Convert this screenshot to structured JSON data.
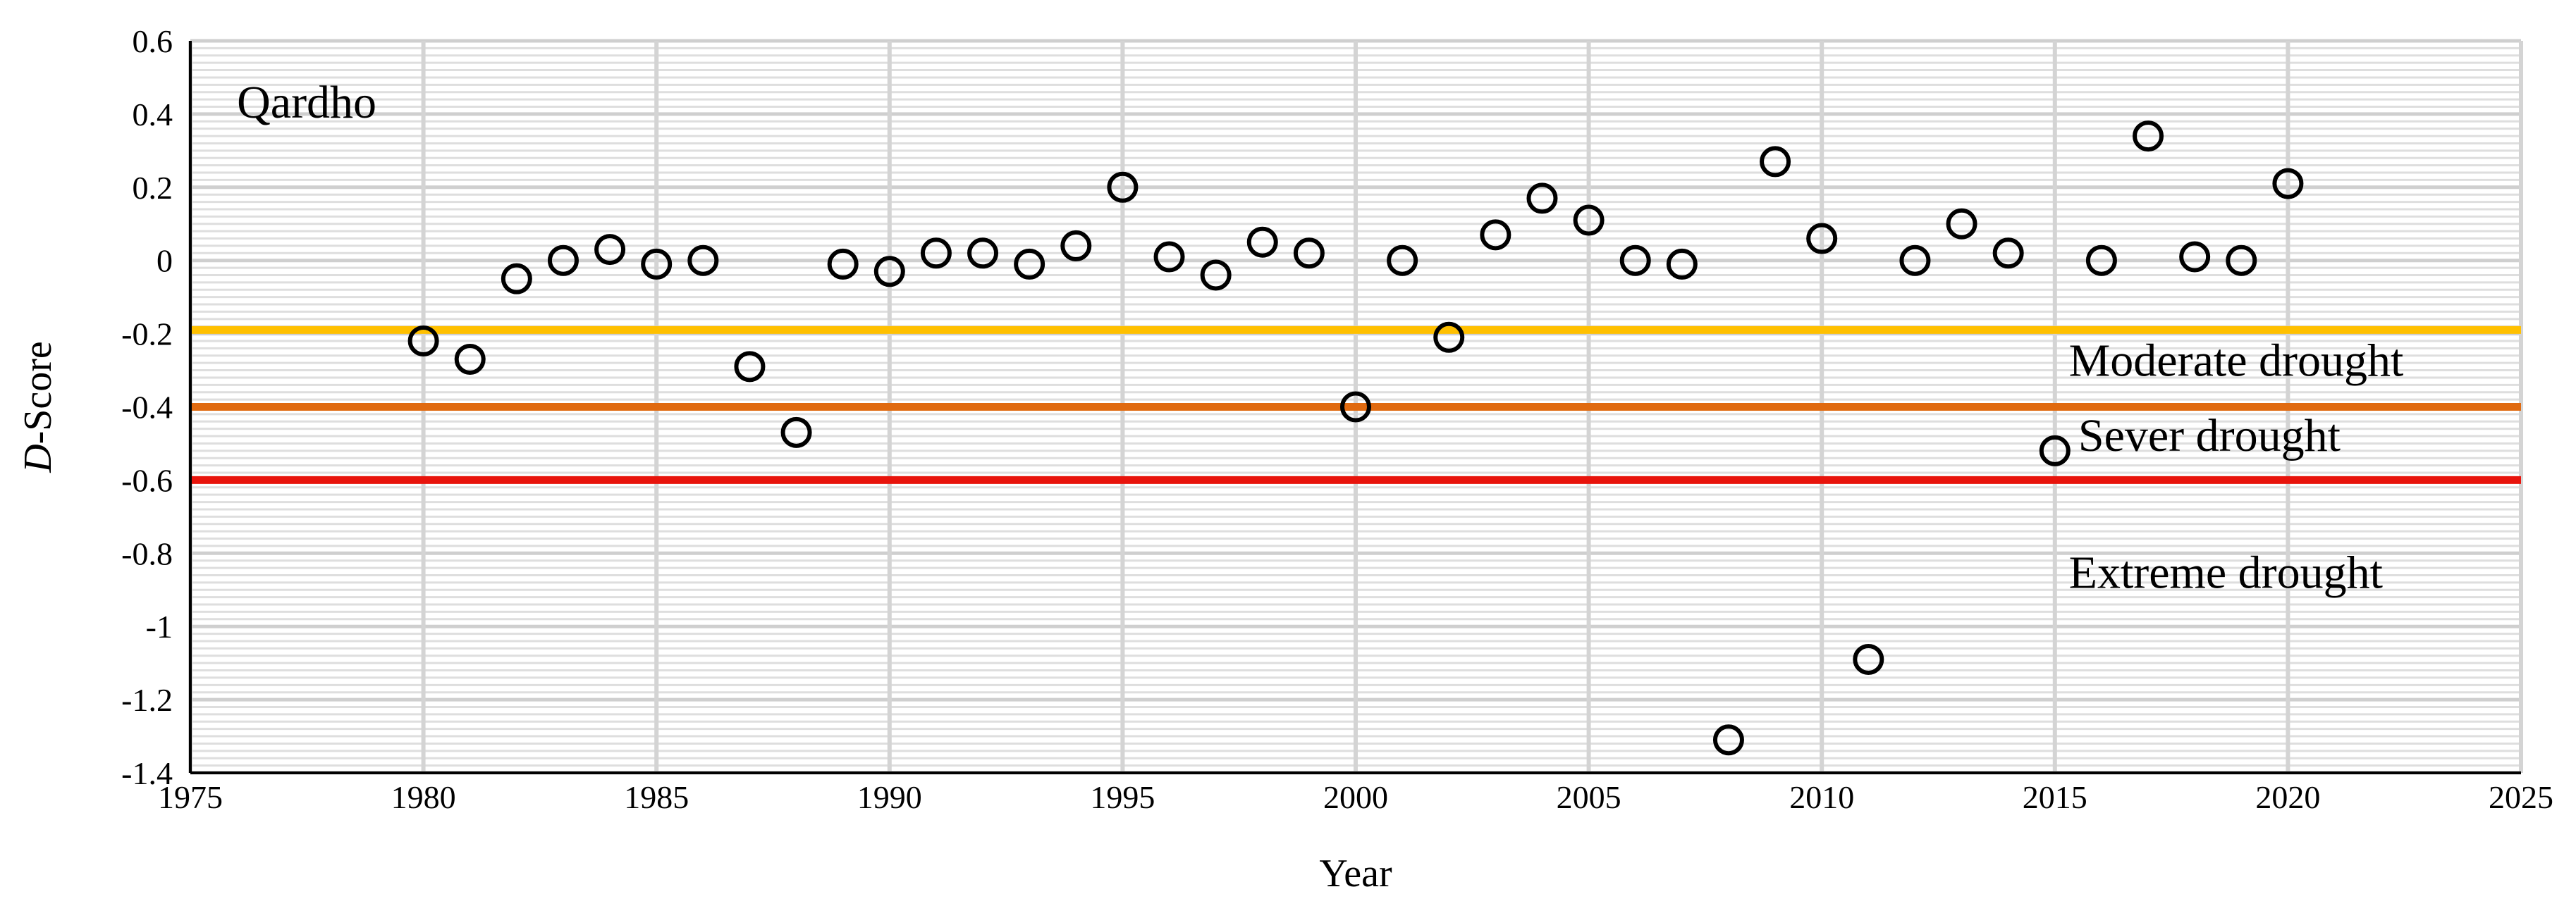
{
  "chart_data": {
    "type": "scatter",
    "title": "",
    "xlabel": "Year",
    "ylabel": "D-Score",
    "xlim": [
      1975,
      2025
    ],
    "ylim": [
      -1.4,
      0.6
    ],
    "x_ticks": [
      1975,
      1980,
      1985,
      1990,
      1995,
      2000,
      2005,
      2010,
      2015,
      2020,
      2025
    ],
    "y_ticks": [
      0.6,
      0.4,
      0.2,
      0,
      -0.2,
      -0.4,
      -0.6,
      -0.8,
      -1,
      -1.2,
      -1.4
    ],
    "grid": true,
    "legend": "none",
    "marker": "open-circle",
    "marker_color": "#000000",
    "series": [
      {
        "x": [
          1980,
          1981,
          1982,
          1983,
          1984,
          1985,
          1986,
          1987,
          1988,
          1989,
          1990,
          1991,
          1992,
          1993,
          1994,
          1995,
          1996,
          1997,
          1998,
          1999,
          2000,
          2001,
          2002,
          2003,
          2004,
          2005,
          2006,
          2007,
          2008,
          2009,
          2010,
          2011,
          2012,
          2013,
          2014,
          2015,
          2016,
          2017,
          2018,
          2019,
          2020
        ],
        "y": [
          -0.22,
          -0.27,
          -0.05,
          0.0,
          0.03,
          -0.01,
          0.0,
          -0.29,
          -0.47,
          -0.01,
          -0.03,
          0.02,
          0.02,
          -0.01,
          0.04,
          0.2,
          0.01,
          -0.04,
          0.05,
          0.02,
          -0.4,
          0.0,
          -0.21,
          0.07,
          0.17,
          0.11,
          0.0,
          -0.01,
          -1.31,
          0.27,
          0.06,
          -1.09,
          0.0,
          0.1,
          0.02,
          -0.52,
          0.0,
          0.34,
          0.01,
          0.0,
          0.21
        ]
      }
    ],
    "threshold_lines": [
      {
        "y": -0.19,
        "color": "#FFC000"
      },
      {
        "y": -0.4,
        "color": "#E06A10"
      },
      {
        "y": -0.6,
        "color": "#E8140C"
      }
    ],
    "annotations": [
      {
        "text": "Qardho",
        "x": 1976.0,
        "y": 0.39
      },
      {
        "text": "Moderate drought",
        "x": 2015.3,
        "y": -0.315
      },
      {
        "text": "Sever drought",
        "x": 2015.5,
        "y": -0.52
      },
      {
        "text": "Extreme drought",
        "x": 2015.3,
        "y": -0.895
      }
    ]
  }
}
